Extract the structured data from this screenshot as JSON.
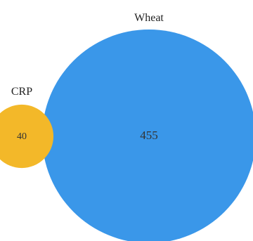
{
  "chart_data": {
    "type": "venn",
    "sets": [
      {
        "name": "Wheat",
        "size": 455,
        "color": "#3a97e9"
      },
      {
        "name": "CRP",
        "size": 40,
        "color": "#f3b829"
      }
    ],
    "intersections": [],
    "title": ""
  }
}
